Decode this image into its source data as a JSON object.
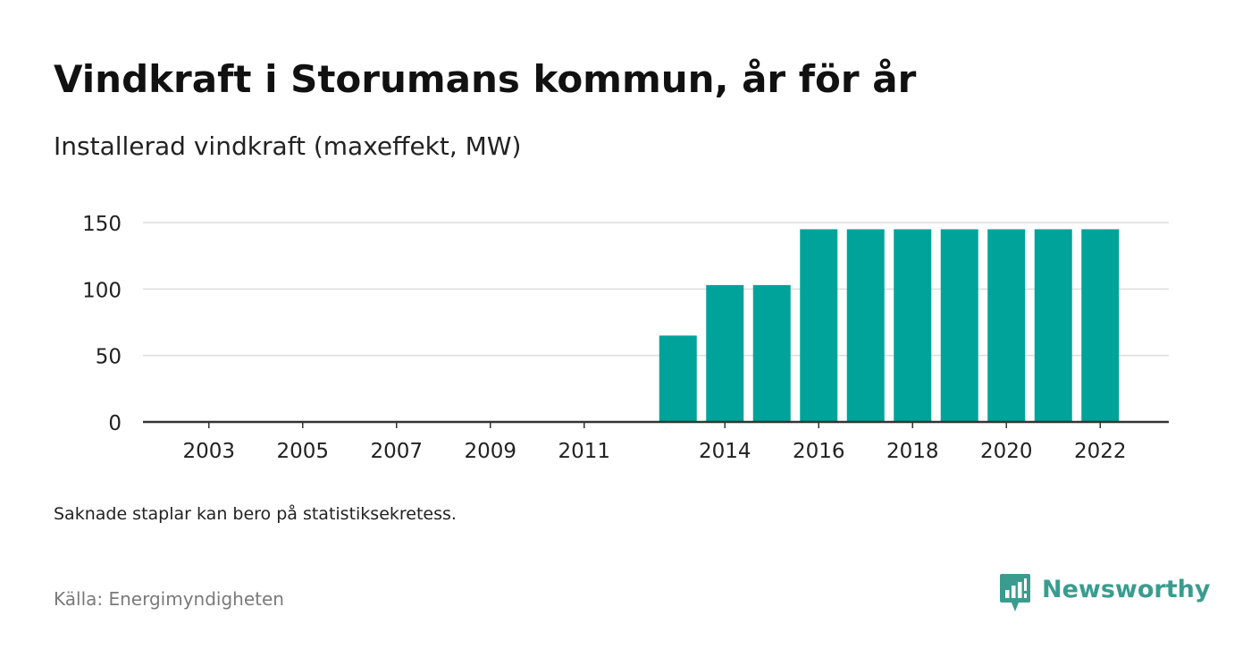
{
  "header": {
    "title": "Vindkraft i Storumans kommun, år för år",
    "subtitle": "Installerad vindkraft (maxeffekt, MW)"
  },
  "footer": {
    "note": "Saknade staplar kan bero på statistiksekretess.",
    "source": "Källa: Energimyndigheten",
    "brand": "Newsworthy"
  },
  "colors": {
    "bar": "#00a39a",
    "grid": "#dddddd",
    "axis": "#333333",
    "brand": "#3a9c8f"
  },
  "icons": {
    "brand_logo": "newsworthy-logo-icon"
  },
  "chart_data": {
    "type": "bar",
    "categories": [
      "2003",
      "2004",
      "2005",
      "2006",
      "2007",
      "2008",
      "2009",
      "2010",
      "2011",
      "2012",
      "2013",
      "2014",
      "2015",
      "2016",
      "2017",
      "2018",
      "2019",
      "2020",
      "2021",
      "2022"
    ],
    "x_tick_labels": [
      "2003",
      "2005",
      "2007",
      "2009",
      "2011",
      "2014",
      "2016",
      "2018",
      "2020",
      "2022"
    ],
    "values": [
      null,
      null,
      null,
      null,
      null,
      null,
      null,
      null,
      null,
      null,
      65,
      103,
      103,
      145,
      145,
      145,
      145,
      145,
      145,
      145
    ],
    "ylim": [
      0,
      150
    ],
    "yticks": [
      0,
      50,
      100,
      150
    ],
    "grid": true,
    "legend": "none"
  }
}
